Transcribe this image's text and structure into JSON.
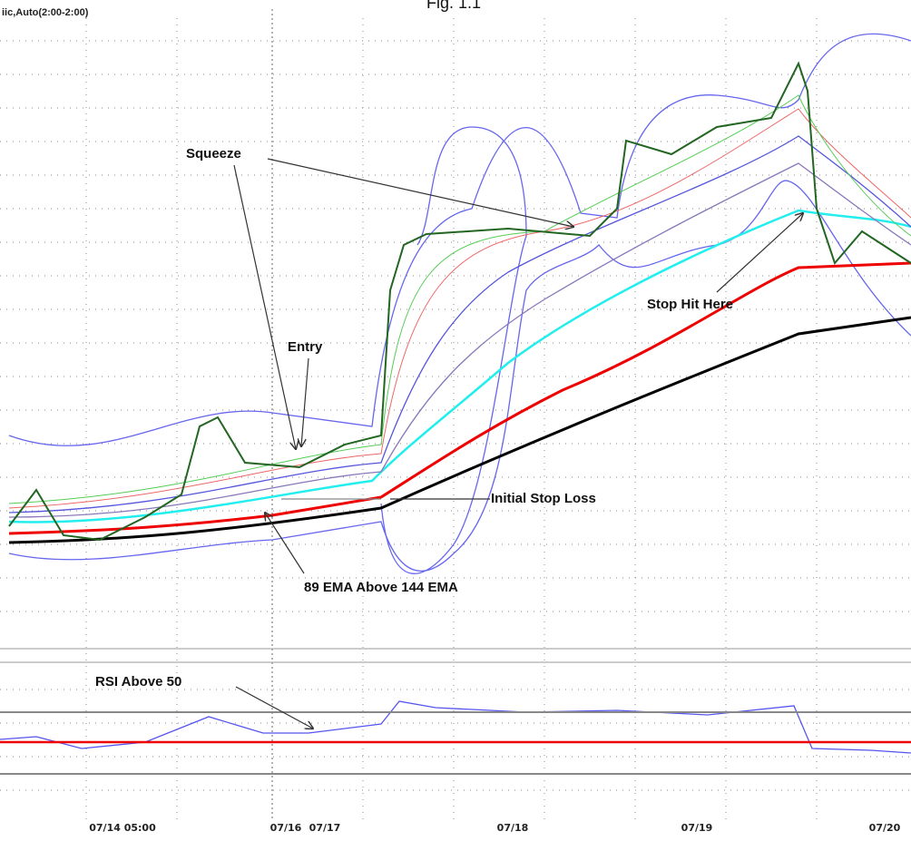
{
  "chart_data": {
    "type": "annotated",
    "title": "Fig. 1.1",
    "subtitle": "iic,Auto(2:00-2:00)",
    "annotations": [
      "Squeeze",
      "Entry",
      "Initial Stop Loss",
      "89 EMA Above 144 EMA",
      "Stop Hit Here",
      "RSI Above 50"
    ],
    "categories": [
      "07/14 05:00",
      "07/16",
      "07/17",
      "07/18",
      "07/19",
      "07/20"
    ]
  }
}
